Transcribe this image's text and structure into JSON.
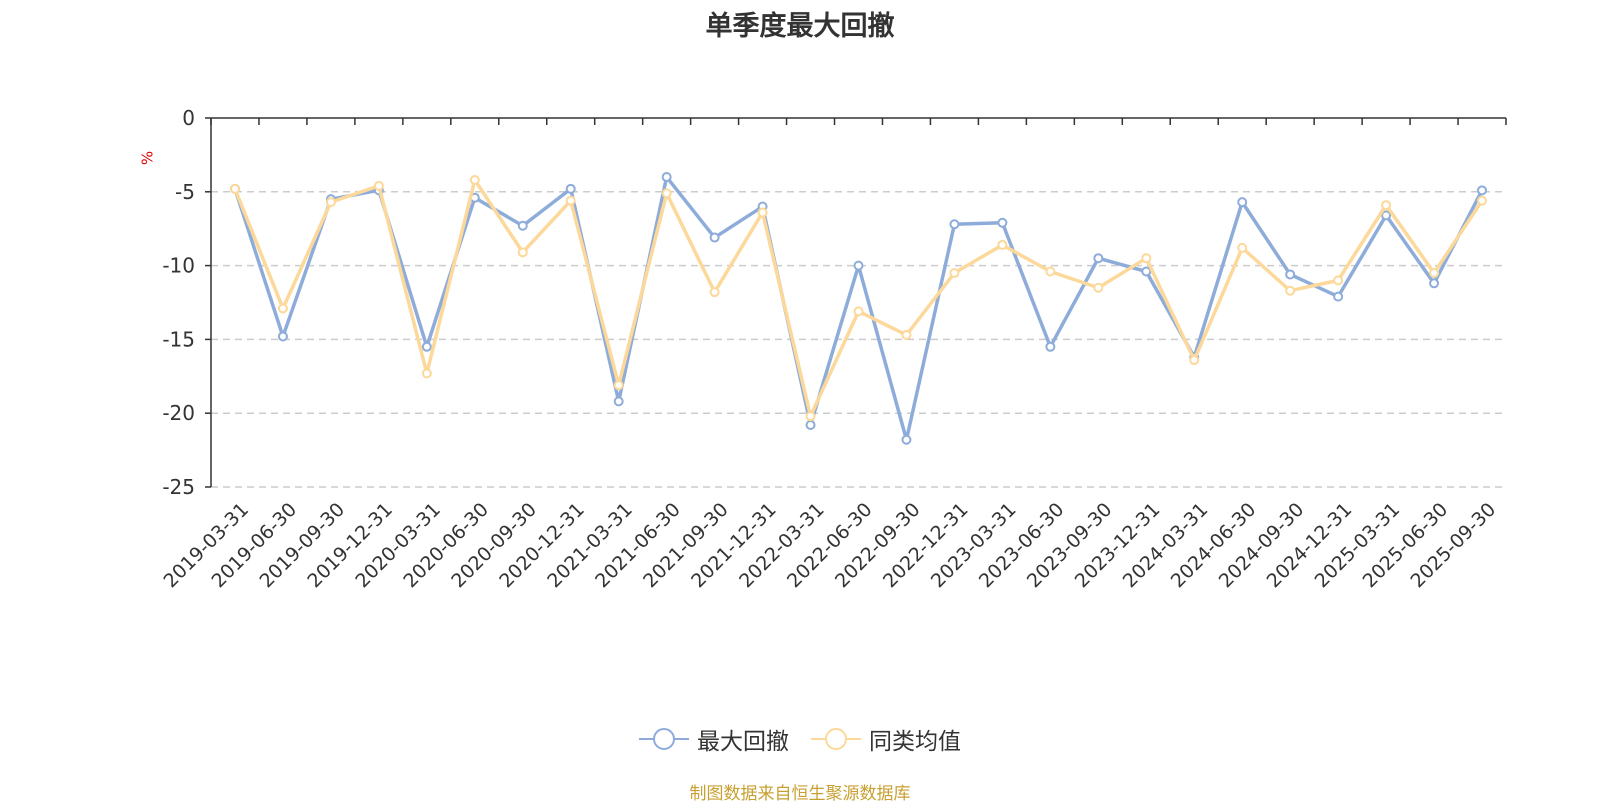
{
  "chart_data": {
    "type": "line",
    "title": "单季度最大回撤",
    "ylabel": "%",
    "xlabel": "",
    "ylim": [
      -25,
      0
    ],
    "yticks": [
      0,
      -5,
      -10,
      -15,
      -20,
      -25
    ],
    "grid": true,
    "legend_position": "bottom",
    "categories": [
      "2019-03-31",
      "2019-06-30",
      "2019-09-30",
      "2019-12-31",
      "2020-03-31",
      "2020-06-30",
      "2020-09-30",
      "2020-12-31",
      "2021-03-31",
      "2021-06-30",
      "2021-09-30",
      "2021-12-31",
      "2022-03-31",
      "2022-06-30",
      "2022-09-30",
      "2022-12-31",
      "2023-03-31",
      "2023-06-30",
      "2023-09-30",
      "2023-12-31",
      "2024-03-31",
      "2024-06-30",
      "2024-09-30",
      "2024-12-31",
      "2025-03-31",
      "2025-06-30",
      "2025-09-30"
    ],
    "series": [
      {
        "name": "最大回撤",
        "color": "#8eacda",
        "values": [
          -4.8,
          -14.8,
          -5.5,
          -4.9,
          -15.5,
          -5.4,
          -7.3,
          -4.8,
          -19.2,
          -4.0,
          -8.1,
          -6.0,
          -20.8,
          -10.0,
          -21.8,
          -7.2,
          -7.1,
          -15.5,
          -9.5,
          -10.4,
          -16.2,
          -5.7,
          -10.6,
          -12.1,
          -6.6,
          -11.2,
          -4.9
        ]
      },
      {
        "name": "同类均值",
        "color": "#fcd89a",
        "values": [
          -4.8,
          -12.9,
          -5.7,
          -4.6,
          -17.3,
          -4.2,
          -9.1,
          -5.6,
          -18.1,
          -5.1,
          -11.8,
          -6.4,
          -20.2,
          -13.1,
          -14.7,
          -10.5,
          -8.6,
          -10.4,
          -11.5,
          -9.5,
          -16.4,
          -8.8,
          -11.7,
          -11.0,
          -5.9,
          -10.5,
          -5.6
        ]
      }
    ]
  },
  "legend": {
    "items": [
      {
        "label": "最大回撤",
        "color": "#8eacda"
      },
      {
        "label": "同类均值",
        "color": "#fcd89a"
      }
    ]
  },
  "footer": {
    "source": "制图数据来自恒生聚源数据库"
  },
  "colors": {
    "axis": "#333333",
    "grid": "#cccccc",
    "unit": "#e00000",
    "source": "#c8a032"
  }
}
